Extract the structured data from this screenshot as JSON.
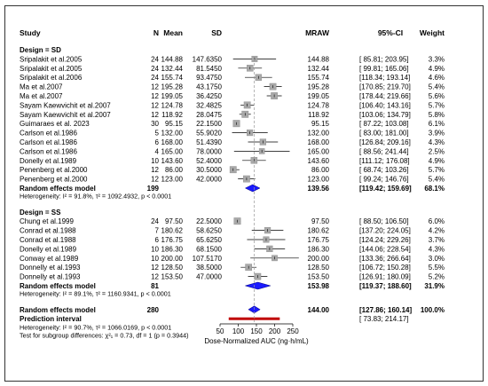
{
  "chart_data": {
    "type": "forest",
    "columns": {
      "study": "Study",
      "n": "N",
      "mean": "Mean",
      "sd": "SD",
      "effect": "MRAW",
      "ci": "95%-CI",
      "weight": "Weight"
    },
    "xaxis": {
      "label": "Dose-Normalized AUC (ng·h/mL)",
      "ticks": [
        50,
        100,
        150,
        200,
        250
      ],
      "range": [
        50,
        250
      ],
      "reference": 144.0
    },
    "colors": {
      "square": "#a9a9a9",
      "diamond": "#1a1aff",
      "prediction": "#c00000",
      "reference_line": "#999999"
    },
    "groups": [
      {
        "label": "Design = SD",
        "studies": [
          {
            "study": "Sripalakit et al.2005",
            "n": "24",
            "mean": "144.88",
            "sd": "147.6350",
            "est": 144.88,
            "lo": 85.81,
            "hi": 203.95,
            "ci": "[ 85.81; 203.95]",
            "weight": "3.3%",
            "w": 3.3
          },
          {
            "study": "Sripalakit et al.2005",
            "n": "24",
            "mean": "132.44",
            "sd": "81.5450",
            "est": 132.44,
            "lo": 99.81,
            "hi": 165.06,
            "ci": "[ 99.81; 165.06]",
            "weight": "4.9%",
            "w": 4.9
          },
          {
            "study": "Sripalakit et al.2006",
            "n": "24",
            "mean": "155.74",
            "sd": "93.4750",
            "est": 155.74,
            "lo": 118.34,
            "hi": 193.14,
            "ci": "[118.34; 193.14]",
            "weight": "4.6%",
            "w": 4.6
          },
          {
            "study": "Ma et al.2007",
            "n": "12",
            "mean": "195.28",
            "sd": "43.1750",
            "est": 195.28,
            "lo": 170.85,
            "hi": 219.7,
            "ci": "[170.85; 219.70]",
            "weight": "5.4%",
            "w": 5.4
          },
          {
            "study": "Ma et al.2007",
            "n": "12",
            "mean": "199.05",
            "sd": "36.4250",
            "est": 199.05,
            "lo": 178.44,
            "hi": 219.66,
            "ci": "[178.44; 219.66]",
            "weight": "5.6%",
            "w": 5.6
          },
          {
            "study": "Sayam Kaewvichit et al.2007",
            "n": "12",
            "mean": "124.78",
            "sd": "32.4825",
            "est": 124.78,
            "lo": 106.4,
            "hi": 143.16,
            "ci": "[106.40; 143.16]",
            "weight": "5.7%",
            "w": 5.7
          },
          {
            "study": "Sayam Kaewvichit et al.2007",
            "n": "12",
            "mean": "118.92",
            "sd": "28.0475",
            "est": 118.92,
            "lo": 103.06,
            "hi": 134.79,
            "ci": "[103.06; 134.79]",
            "weight": "5.8%",
            "w": 5.8
          },
          {
            "study": "Guimaraes et al. 2023",
            "n": "30",
            "mean": "95.15",
            "sd": "22.1500",
            "est": 95.15,
            "lo": 87.22,
            "hi": 103.08,
            "ci": "[ 87.22; 103.08]",
            "weight": "6.1%",
            "w": 6.1
          },
          {
            "study": "Carlson et al.1986",
            "n": "5",
            "mean": "132.00",
            "sd": "55.9020",
            "est": 132.0,
            "lo": 83.0,
            "hi": 181.0,
            "ci": "[ 83.00; 181.00]",
            "weight": "3.9%",
            "w": 3.9
          },
          {
            "study": "Carlson et al.1986",
            "n": "6",
            "mean": "168.00",
            "sd": "51.4390",
            "est": 168.0,
            "lo": 126.84,
            "hi": 209.16,
            "ci": "[126.84; 209.16]",
            "weight": "4.3%",
            "w": 4.3
          },
          {
            "study": "Carlson et al.1986",
            "n": "4",
            "mean": "165.00",
            "sd": "78.0000",
            "est": 165.0,
            "lo": 88.56,
            "hi": 241.44,
            "ci": "[ 88.56; 241.44]",
            "weight": "2.5%",
            "w": 2.5
          },
          {
            "study": "Donelly et al.1989",
            "n": "10",
            "mean": "143.60",
            "sd": "52.4000",
            "est": 143.6,
            "lo": 111.12,
            "hi": 176.08,
            "ci": "[111.12; 176.08]",
            "weight": "4.9%",
            "w": 4.9
          },
          {
            "study": "Penenberg et al.2000",
            "n": "12",
            "mean": "86.00",
            "sd": "30.5000",
            "est": 86.0,
            "lo": 68.74,
            "hi": 103.26,
            "ci": "[ 68.74; 103.26]",
            "weight": "5.7%",
            "w": 5.7
          },
          {
            "study": "Penenberg et al.2000",
            "n": "12",
            "mean": "123.00",
            "sd": "42.0000",
            "est": 123.0,
            "lo": 99.24,
            "hi": 146.76,
            "ci": "[ 99.24; 146.76]",
            "weight": "5.4%",
            "w": 5.4
          }
        ],
        "summary": {
          "label": "Random effects model",
          "n": "199",
          "est": 139.56,
          "lo": 119.42,
          "hi": 159.69,
          "effect": "139.56",
          "ci": "[119.42; 159.69]",
          "weight": "68.1%"
        },
        "heterogeneity": "Heterogeneity: I² = 91.8%, τ² = 1092.4932, p < 0.0001"
      },
      {
        "label": "Design = SS",
        "studies": [
          {
            "study": "Chung et al.1999",
            "n": "24",
            "mean": "97.50",
            "sd": "22.5000",
            "est": 97.5,
            "lo": 88.5,
            "hi": 106.5,
            "ci": "[ 88.50; 106.50]",
            "weight": "6.0%",
            "w": 6.0
          },
          {
            "study": "Conrad et al.1988",
            "n": "7",
            "mean": "180.62",
            "sd": "58.6250",
            "est": 180.62,
            "lo": 137.2,
            "hi": 224.05,
            "ci": "[137.20; 224.05]",
            "weight": "4.2%",
            "w": 4.2
          },
          {
            "study": "Conrad et al.1988",
            "n": "6",
            "mean": "176.75",
            "sd": "65.6250",
            "est": 176.75,
            "lo": 124.24,
            "hi": 229.26,
            "ci": "[124.24; 229.26]",
            "weight": "3.7%",
            "w": 3.7
          },
          {
            "study": "Donelly et al.1989",
            "n": "10",
            "mean": "186.30",
            "sd": "68.1500",
            "est": 186.3,
            "lo": 144.06,
            "hi": 228.54,
            "ci": "[144.06; 228.54]",
            "weight": "4.3%",
            "w": 4.3
          },
          {
            "study": "Conway et al.1989",
            "n": "10",
            "mean": "200.00",
            "sd": "107.5170",
            "est": 200.0,
            "lo": 133.36,
            "hi": 266.64,
            "ci": "[133.36; 266.64]",
            "weight": "3.0%",
            "w": 3.0
          },
          {
            "study": "Donnelly et al.1993",
            "n": "12",
            "mean": "128.50",
            "sd": "38.5000",
            "est": 128.5,
            "lo": 106.72,
            "hi": 150.28,
            "ci": "[106.72; 150.28]",
            "weight": "5.5%",
            "w": 5.5
          },
          {
            "study": "Donnelly et al.1993",
            "n": "12",
            "mean": "153.50",
            "sd": "47.0000",
            "est": 153.5,
            "lo": 126.91,
            "hi": 180.09,
            "ci": "[126.91; 180.09]",
            "weight": "5.2%",
            "w": 5.2
          }
        ],
        "summary": {
          "label": "Random effects model",
          "n": "81",
          "est": 153.98,
          "lo": 119.37,
          "hi": 188.6,
          "effect": "153.98",
          "ci": "[119.37; 188.60]",
          "weight": "31.9%"
        },
        "heterogeneity": "Heterogeneity: I² = 89.1%, τ² = 1160.9341, p < 0.0001"
      }
    ],
    "overall": {
      "label": "Random effects model",
      "n": "280",
      "est": 144.0,
      "lo": 127.86,
      "hi": 160.14,
      "effect": "144.00",
      "ci": "[127.86; 160.14]",
      "weight": "100.0%"
    },
    "prediction": {
      "label": "Prediction interval",
      "lo": 73.83,
      "hi": 214.17,
      "ci": "[ 73.83; 214.17]"
    },
    "heterogeneity": "Heterogeneity: I² = 90.7%, τ² = 1066.0169, p < 0.0001",
    "subgroup_test": "Test for subgroup differences: χ²₁ = 0.73, df = 1 (p = 0.3944)"
  }
}
